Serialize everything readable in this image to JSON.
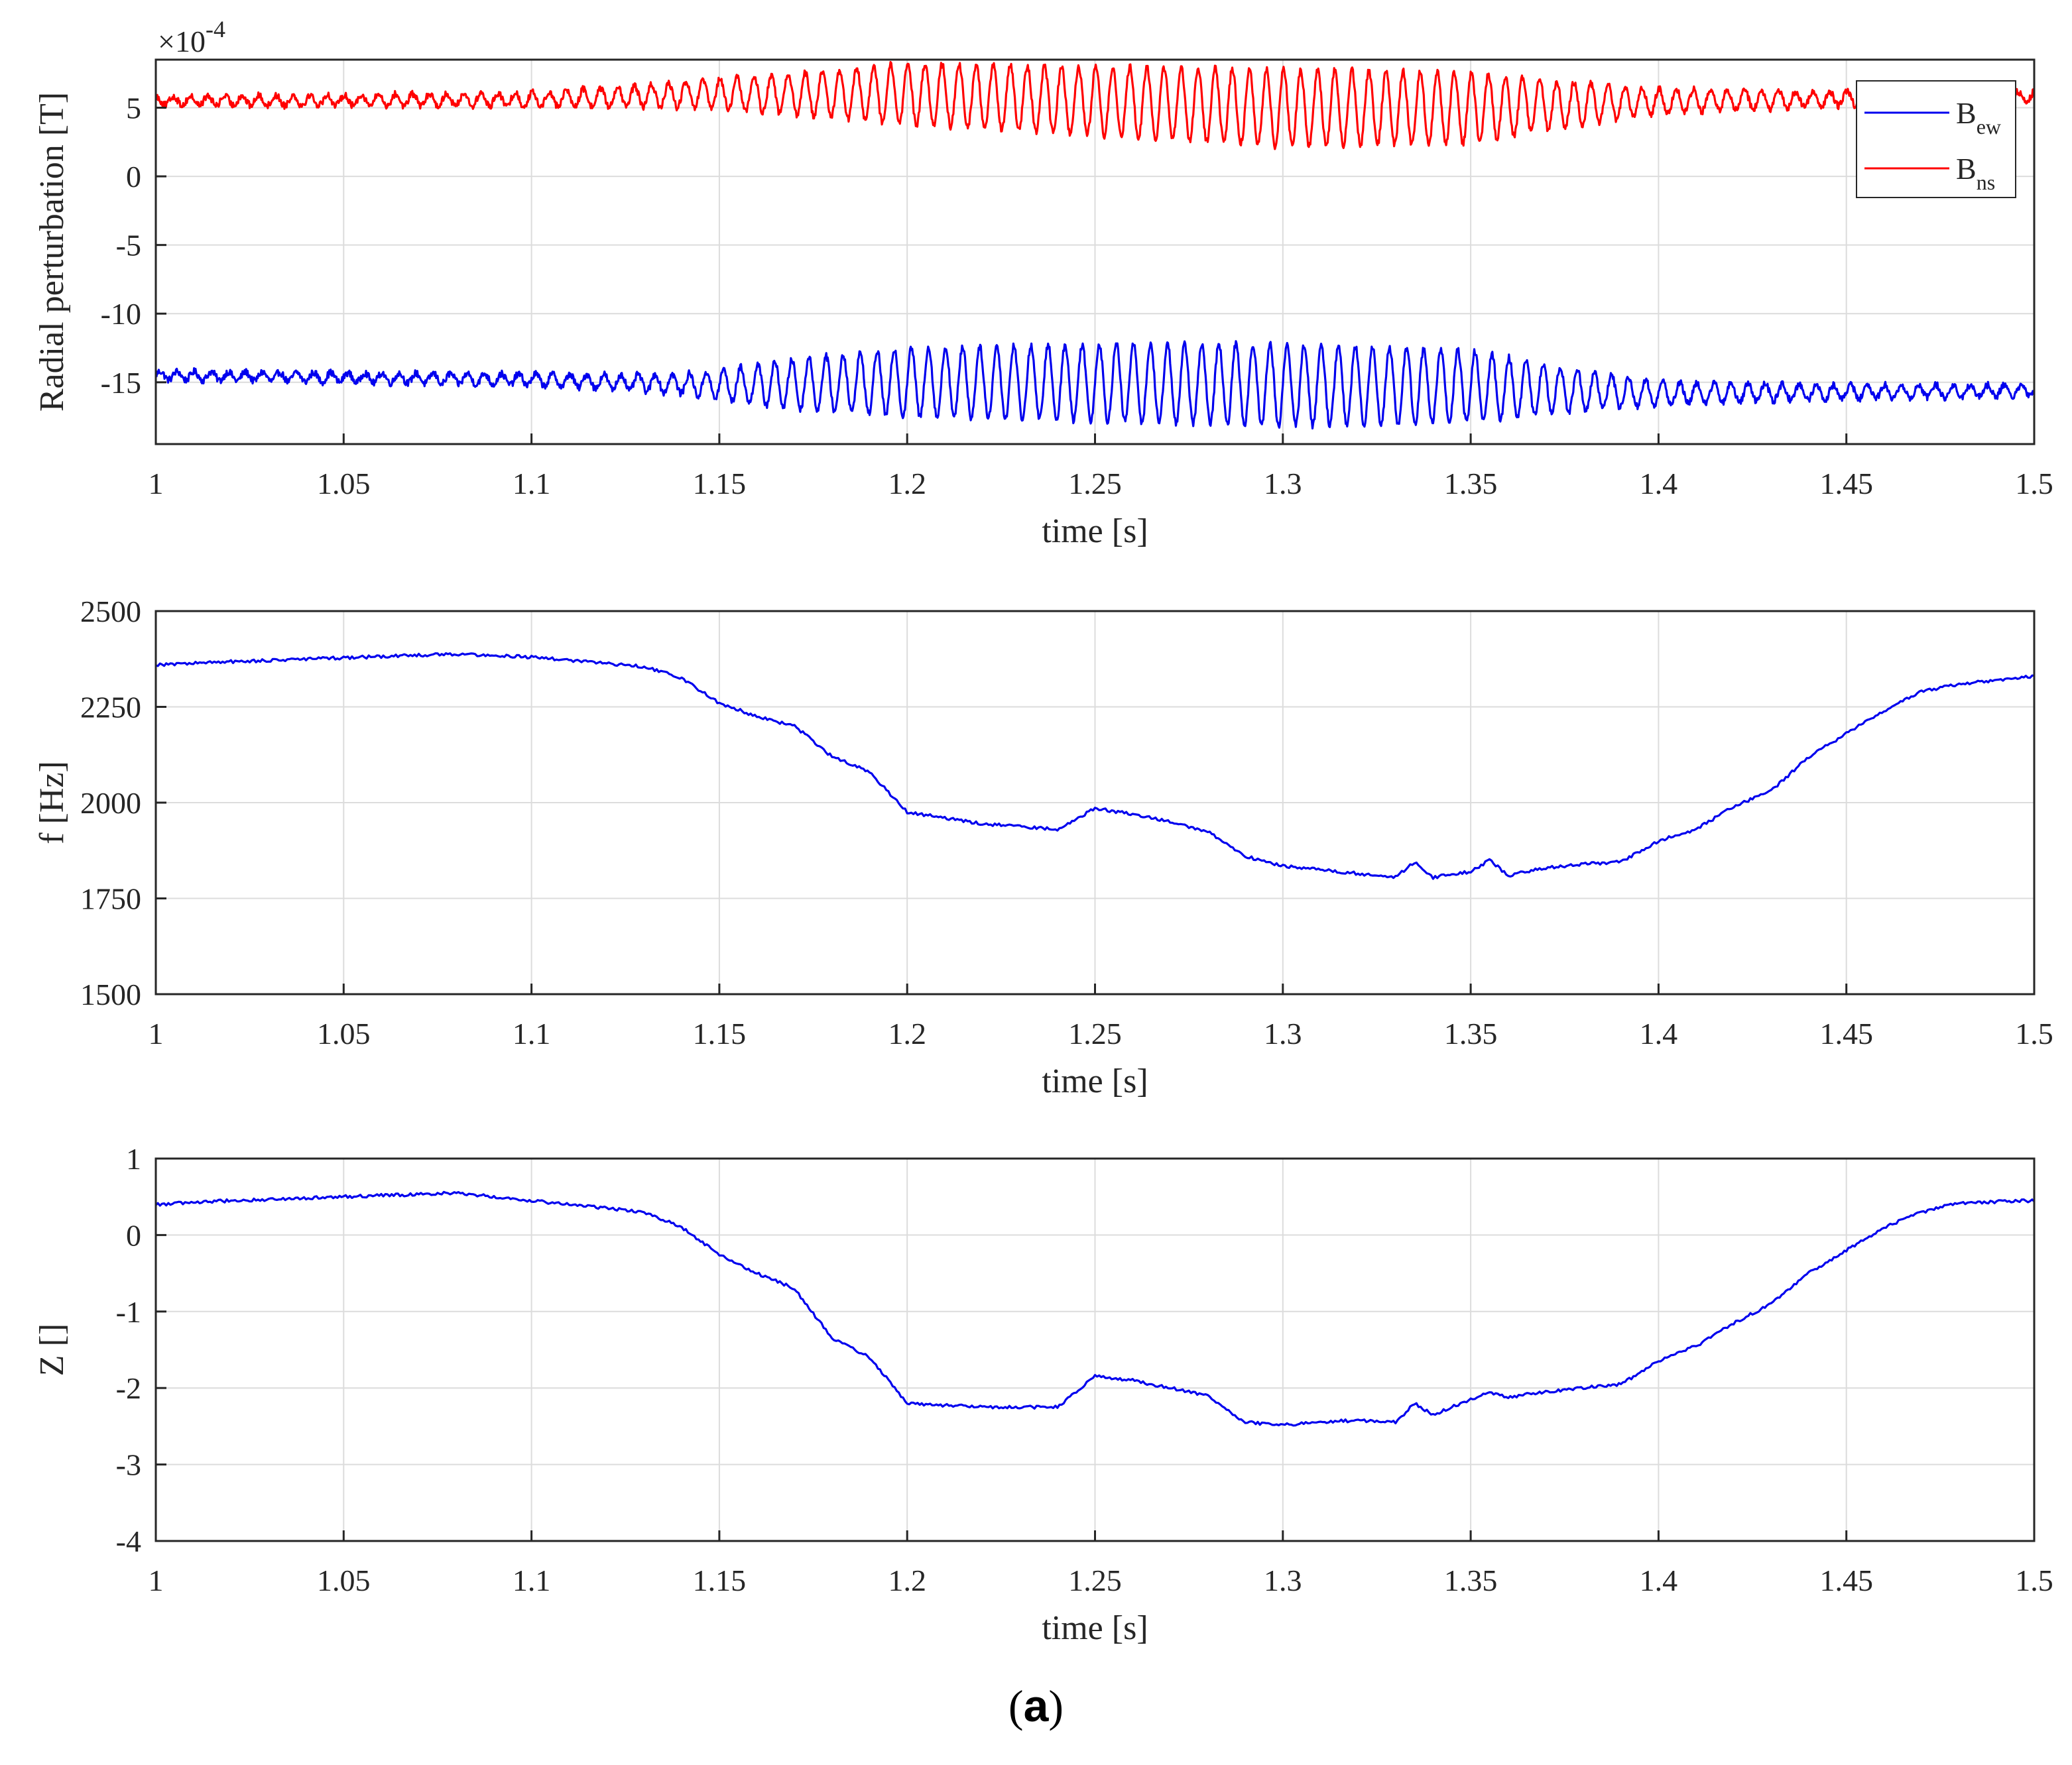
{
  "figure_label": "(a)",
  "figure_label_parts": {
    "open": "(",
    "letter": "a",
    "close": ")"
  },
  "chart_data": [
    {
      "type": "line",
      "ylabel": "Radial perturbation [T]",
      "xlabel": "time [s]",
      "exponent_label": "×10",
      "exponent_power": "-4",
      "xlim": [
        1,
        1.5
      ],
      "ylim": [
        -19.5,
        8.5
      ],
      "x_ticks": [
        1,
        1.05,
        1.1,
        1.15,
        1.2,
        1.25,
        1.3,
        1.35,
        1.4,
        1.45,
        1.5
      ],
      "x_tick_labels": [
        "1",
        "1.05",
        "1.1",
        "1.15",
        "1.2",
        "1.25",
        "1.3",
        "1.35",
        "1.4",
        "1.45",
        "1.5"
      ],
      "y_ticks": [
        5,
        0,
        -5,
        -10,
        -15
      ],
      "y_tick_labels": [
        "5",
        "0",
        "-5",
        "-10",
        "-15"
      ],
      "grid": true,
      "legend": {
        "position": "top-right",
        "entries": [
          {
            "base": "B",
            "sub": "ew",
            "color": "#0000ee"
          },
          {
            "base": "B",
            "sub": "ns",
            "color": "#ff0000"
          }
        ]
      },
      "series": [
        {
          "name": "B_ew",
          "color": "#0000ee",
          "mean_x": [
            1.0,
            1.1,
            1.15,
            1.2,
            1.25,
            1.3,
            1.35,
            1.4,
            1.5
          ],
          "mean_y": [
            -14.5,
            -14.8,
            -15.2,
            -15.0,
            -15.0,
            -15.2,
            -15.3,
            -15.8,
            -15.6
          ],
          "amp_x": [
            1.0,
            1.1,
            1.14,
            1.17,
            1.2,
            1.25,
            1.3,
            1.35,
            1.37,
            1.4,
            1.45,
            1.5
          ],
          "amp_y": [
            0.3,
            0.4,
            0.7,
            1.8,
            2.5,
            2.8,
            3.0,
            2.6,
            1.8,
            0.8,
            0.5,
            0.4
          ]
        },
        {
          "name": "B_ns",
          "color": "#ff0000",
          "mean_x": [
            1.0,
            1.1,
            1.15,
            1.2,
            1.25,
            1.3,
            1.35,
            1.4,
            1.5
          ],
          "mean_y": [
            5.5,
            5.6,
            6.0,
            6.0,
            5.5,
            5.0,
            5.0,
            5.5,
            5.8
          ],
          "amp_x": [
            1.0,
            1.1,
            1.14,
            1.17,
            1.2,
            1.25,
            1.3,
            1.35,
            1.37,
            1.4,
            1.45,
            1.5
          ],
          "amp_y": [
            0.3,
            0.5,
            0.9,
            1.5,
            2.2,
            2.5,
            2.8,
            2.6,
            1.8,
            0.9,
            0.5,
            0.4
          ]
        }
      ]
    },
    {
      "type": "line",
      "ylabel": "f [Hz]",
      "xlabel": "time [s]",
      "xlim": [
        1,
        1.5
      ],
      "ylim": [
        1500,
        2500
      ],
      "x_ticks": [
        1,
        1.05,
        1.1,
        1.15,
        1.2,
        1.25,
        1.3,
        1.35,
        1.4,
        1.45,
        1.5
      ],
      "x_tick_labels": [
        "1",
        "1.05",
        "1.1",
        "1.15",
        "1.2",
        "1.25",
        "1.3",
        "1.35",
        "1.4",
        "1.45",
        "1.5"
      ],
      "y_ticks": [
        2500,
        2250,
        2000,
        1750,
        1500
      ],
      "y_tick_labels": [
        "2500",
        "2250",
        "2000",
        "1750",
        "1500"
      ],
      "grid": true,
      "series": [
        {
          "name": "f",
          "color": "#0000ee",
          "x": [
            1.0,
            1.02,
            1.05,
            1.08,
            1.1,
            1.13,
            1.14,
            1.15,
            1.16,
            1.17,
            1.18,
            1.19,
            1.2,
            1.22,
            1.24,
            1.25,
            1.26,
            1.27,
            1.28,
            1.29,
            1.3,
            1.31,
            1.32,
            1.33,
            1.335,
            1.34,
            1.35,
            1.355,
            1.36,
            1.37,
            1.38,
            1.39,
            1.4,
            1.41,
            1.42,
            1.43,
            1.44,
            1.45,
            1.46,
            1.47,
            1.48,
            1.5
          ],
          "y": [
            2360,
            2368,
            2378,
            2388,
            2380,
            2355,
            2325,
            2260,
            2225,
            2200,
            2120,
            2080,
            1975,
            1945,
            1930,
            1985,
            1970,
            1950,
            1925,
            1860,
            1835,
            1825,
            1815,
            1805,
            1845,
            1805,
            1820,
            1850,
            1810,
            1830,
            1840,
            1845,
            1900,
            1930,
            1990,
            2030,
            2120,
            2180,
            2240,
            2290,
            2310,
            2330
          ]
        }
      ]
    },
    {
      "type": "line",
      "ylabel": "Z []",
      "xlabel": "time [s]",
      "xlim": [
        1,
        1.5
      ],
      "ylim": [
        -4,
        1
      ],
      "x_ticks": [
        1,
        1.05,
        1.1,
        1.15,
        1.2,
        1.25,
        1.3,
        1.35,
        1.4,
        1.45,
        1.5
      ],
      "x_tick_labels": [
        "1",
        "1.05",
        "1.1",
        "1.15",
        "1.2",
        "1.25",
        "1.3",
        "1.35",
        "1.4",
        "1.45",
        "1.5"
      ],
      "y_ticks": [
        1,
        0,
        -1,
        -2,
        -3,
        -4
      ],
      "y_tick_labels": [
        "1",
        "0",
        "-1",
        "-2",
        "-3",
        "-4"
      ],
      "grid": true,
      "series": [
        {
          "name": "Z",
          "color": "#0000ee",
          "x": [
            1.0,
            1.02,
            1.05,
            1.08,
            1.1,
            1.13,
            1.14,
            1.15,
            1.16,
            1.17,
            1.18,
            1.19,
            1.2,
            1.22,
            1.24,
            1.25,
            1.26,
            1.27,
            1.28,
            1.29,
            1.3,
            1.31,
            1.32,
            1.33,
            1.335,
            1.34,
            1.35,
            1.355,
            1.36,
            1.37,
            1.38,
            1.39,
            1.4,
            1.41,
            1.42,
            1.43,
            1.44,
            1.45,
            1.46,
            1.47,
            1.48,
            1.5
          ],
          "y": [
            0.4,
            0.45,
            0.5,
            0.55,
            0.45,
            0.3,
            0.1,
            -0.25,
            -0.5,
            -0.7,
            -1.35,
            -1.6,
            -2.2,
            -2.25,
            -2.25,
            -1.85,
            -1.9,
            -2.0,
            -2.1,
            -2.45,
            -2.48,
            -2.45,
            -2.42,
            -2.45,
            -2.2,
            -2.35,
            -2.15,
            -2.05,
            -2.12,
            -2.05,
            -2.0,
            -1.95,
            -1.65,
            -1.45,
            -1.15,
            -0.9,
            -0.5,
            -0.2,
            0.1,
            0.3,
            0.42,
            0.45
          ]
        }
      ]
    }
  ]
}
